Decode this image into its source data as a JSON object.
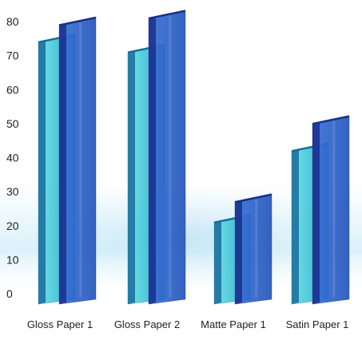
{
  "chart_data": {
    "type": "bar",
    "title": "",
    "xlabel": "",
    "ylabel": "",
    "categories": [
      "Gloss Paper 1",
      "Gloss Paper 2",
      "Matte Paper 1",
      "Satin Paper 1"
    ],
    "series": [
      {
        "values": [
          75,
          72,
          22,
          43
        ]
      },
      {
        "values": [
          80,
          82,
          28,
          51
        ]
      }
    ],
    "ylim": [
      0,
      85
    ],
    "yticks": [
      0,
      10,
      20,
      30,
      40,
      50,
      60,
      70,
      80
    ],
    "grid": false,
    "legend": "none",
    "colors": {
      "front_pane": "#3fc3d6",
      "back_pane": "#2f63c9",
      "back_pane_edge": "#1a2f8a",
      "front_pane_edge": "#176c9a",
      "tick_label": "#222222",
      "category_label": "#222222"
    }
  }
}
